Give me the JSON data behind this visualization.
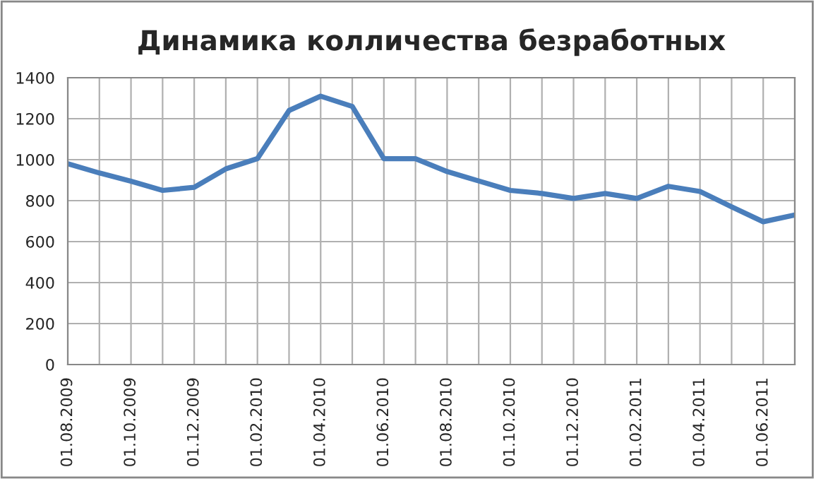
{
  "chart_data": {
    "type": "line",
    "title": "Динамика колличества безработных",
    "categories": [
      "01.08.2009",
      null,
      "01.10.2009",
      null,
      "01.12.2009",
      null,
      "01.02.2010",
      null,
      "01.04.2010",
      null,
      "01.06.2010",
      null,
      "01.08.2010",
      null,
      "01.10.2010",
      null,
      "01.12.2010",
      null,
      "01.02.2011",
      null,
      "01.04.2011",
      null,
      "01.06.2011",
      null
    ],
    "series": [
      {
        "color": "#4a7ebb",
        "values": [
          980,
          935,
          895,
          850,
          865,
          955,
          1005,
          1240,
          1310,
          1260,
          1005,
          1005,
          942,
          896,
          850,
          835,
          811,
          835,
          811,
          870,
          845,
          770,
          697,
          730
        ]
      }
    ],
    "ylim": [
      0,
      1400
    ],
    "yticks": [
      0,
      200,
      400,
      600,
      800,
      1000,
      1200,
      1400
    ],
    "grid": true,
    "legend": false,
    "marker": "none",
    "line_style": "solid"
  }
}
